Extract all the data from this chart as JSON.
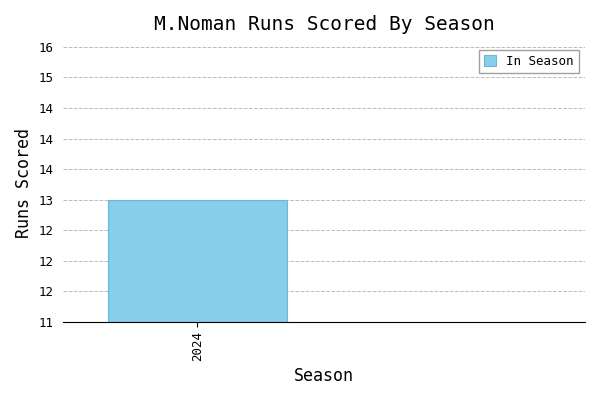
{
  "title": "M.Noman Runs Scored By Season",
  "xlabel": "Season",
  "ylabel": "Runs Scored",
  "seasons": [
    2024
  ],
  "values": [
    13
  ],
  "bar_color": "#87CEEB",
  "bar_edgecolor": "#6BB8D4",
  "ylim_bottom": 11,
  "ylim_top": 15.55,
  "xlim_left": 2023.55,
  "xlim_right": 2025.3,
  "bar_width": 0.6,
  "legend_label": "In Season",
  "background_color": "#ffffff",
  "grid_color": "#aaaaaa",
  "title_fontsize": 14,
  "label_fontsize": 12,
  "tick_fontsize": 9
}
